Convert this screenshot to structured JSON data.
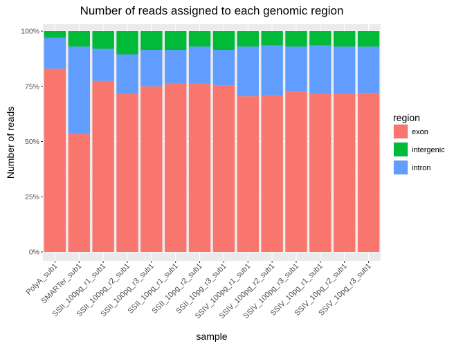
{
  "chart_data": {
    "type": "bar",
    "stacked": true,
    "title": "Number of reads assigned to each genomic region",
    "xlabel": "sample",
    "ylabel": "Number of reads",
    "ylim": [
      0,
      100
    ],
    "y_ticks": [
      "0%",
      "25%",
      "50%",
      "75%",
      "100%"
    ],
    "grid": true,
    "legend": {
      "title": "region",
      "position": "right"
    },
    "categories": [
      "PolyA_sub1",
      "SMARTer_sub1",
      "SSII_100pg_r1_sub1",
      "SSII_100pg_r2_sub1",
      "SSII_100pg_r3_sub1",
      "SSII_10pg_r1_sub1",
      "SSII_10pg_r2_sub1",
      "SSII_10pg_r3_sub1",
      "SSIV_100pg_r1_sub1",
      "SSIV_100pg_r2_sub1",
      "SSIV_100pg_r3_sub1",
      "SSIV_10pg_r1_sub1",
      "SSIV_10pg_r2_sub1",
      "SSIV_10pg_r3_sub1"
    ],
    "series": [
      {
        "name": "exon",
        "color": "#F8766D",
        "values": [
          83,
          53.5,
          77.5,
          71.5,
          75,
          76.5,
          76.5,
          75.5,
          70.5,
          71,
          72.5,
          71.5,
          71.5,
          72
        ]
      },
      {
        "name": "intron",
        "color": "#619CFF",
        "values": [
          14,
          39.5,
          14.5,
          18,
          16.5,
          15,
          16.5,
          16,
          22.5,
          22.5,
          20.5,
          22,
          21.5,
          21
        ]
      },
      {
        "name": "intergenic",
        "color": "#00BA38",
        "values": [
          3,
          7,
          8,
          10.5,
          8.5,
          8.5,
          7,
          8.5,
          7,
          6.5,
          7,
          6.5,
          7,
          7
        ]
      }
    ],
    "legend_order": [
      "exon",
      "intergenic",
      "intron"
    ]
  }
}
